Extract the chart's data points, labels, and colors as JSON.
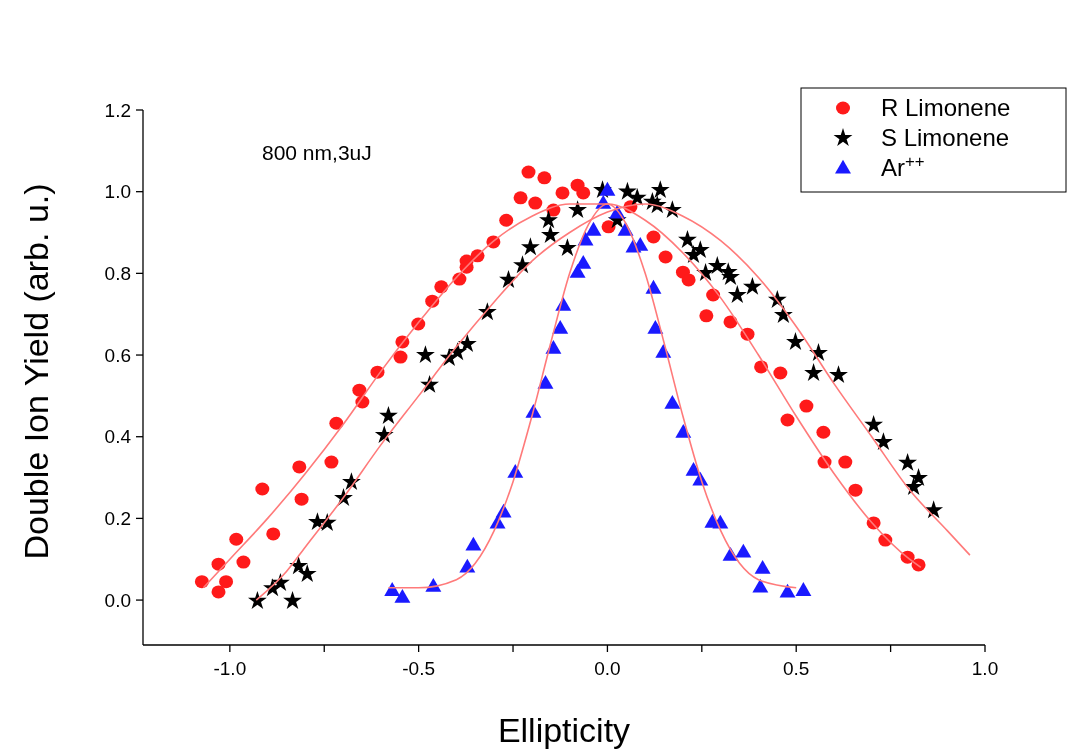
{
  "chart_data": {
    "type": "scatter",
    "xlabel": "Ellipticity",
    "ylabel": "Double Ion Yield (arb. u.)",
    "annotations": [
      "800 nm,3uJ"
    ],
    "xlim": [
      -1.23,
      1.0
    ],
    "ylim": [
      -0.11,
      1.2
    ],
    "xticks": [
      {
        "value": -1.0,
        "label": "-1.0"
      },
      {
        "value": -0.75,
        "label": null
      },
      -0.5,
      {
        "value": -0.25,
        "label": null
      },
      {
        "value": 0,
        "label": "0.0"
      },
      {
        "value": 0.25,
        "label": null
      },
      0.5,
      {
        "value": 0.75,
        "label": null
      },
      {
        "value": 1.0,
        "label": "1.0"
      }
    ],
    "yticks": [
      {
        "value": 0,
        "label": "0.0"
      },
      0.2,
      0.4,
      0.6,
      0.8,
      {
        "value": 1.0,
        "label": "1.0"
      },
      1.2
    ],
    "grid": false,
    "legend": "top right",
    "series": [
      {
        "name": "R Limonene",
        "color": "#ff1a1a",
        "marker": "circle",
        "x": [
          -1.074,
          -1.03,
          -1.01,
          -1.03,
          -0.964,
          -0.983,
          -0.885,
          -0.914,
          -0.81,
          -0.816,
          -0.731,
          -0.718,
          -0.649,
          -0.657,
          -0.609,
          -0.548,
          -0.543,
          -0.501,
          -0.464,
          -0.44,
          -0.392,
          -0.373,
          -0.373,
          -0.344,
          -0.209,
          -0.167,
          -0.23,
          -0.191,
          -0.268,
          -0.302,
          -0.143,
          -0.119,
          -0.079,
          -0.064,
          0.003,
          0.061,
          0.122,
          0.154,
          0.2,
          0.215,
          0.28,
          0.262,
          0.326,
          0.371,
          0.407,
          0.458,
          0.527,
          0.477,
          0.572,
          0.575,
          0.63,
          0.657,
          0.705,
          0.736,
          0.795,
          0.824
        ],
        "values": [
          0.045,
          0.088,
          0.045,
          0.02,
          0.093,
          0.149,
          0.162,
          0.272,
          0.247,
          0.326,
          0.338,
          0.433,
          0.485,
          0.514,
          0.558,
          0.595,
          0.632,
          0.676,
          0.732,
          0.767,
          0.786,
          0.815,
          0.83,
          0.843,
          1.048,
          1.034,
          0.985,
          0.972,
          0.93,
          0.877,
          0.955,
          0.997,
          1.016,
          0.997,
          0.914,
          0.963,
          0.889,
          0.84,
          0.803,
          0.784,
          0.747,
          0.696,
          0.681,
          0.651,
          0.571,
          0.556,
          0.475,
          0.441,
          0.411,
          0.338,
          0.338,
          0.269,
          0.189,
          0.147,
          0.105,
          0.086
        ]
      },
      {
        "name": "S Limonene",
        "color": "#000000",
        "marker": "star",
        "x": [
          -0.927,
          -0.834,
          -0.887,
          -0.866,
          -0.818,
          -0.795,
          -0.768,
          -0.742,
          -0.699,
          -0.678,
          -0.591,
          -0.58,
          -0.471,
          -0.482,
          -0.419,
          -0.397,
          -0.371,
          -0.318,
          -0.262,
          -0.225,
          -0.204,
          -0.151,
          -0.106,
          -0.156,
          -0.079,
          -0.013,
          0.053,
          0.079,
          0.132,
          0.14,
          0.026,
          0.119,
          0.172,
          0.212,
          0.246,
          0.228,
          0.291,
          0.32,
          0.326,
          0.26,
          0.344,
          0.384,
          0.45,
          0.466,
          0.498,
          0.559,
          0.546,
          0.612,
          0.705,
          0.731,
          0.795,
          0.824,
          0.811,
          0.864
        ],
        "values": [
          -0.002,
          -0.002,
          0.029,
          0.042,
          0.083,
          0.064,
          0.191,
          0.189,
          0.25,
          0.289,
          0.404,
          0.451,
          0.527,
          0.6,
          0.593,
          0.607,
          0.627,
          0.705,
          0.784,
          0.82,
          0.864,
          0.894,
          0.862,
          0.93,
          0.955,
          1.004,
          1.0,
          0.985,
          0.967,
          1.004,
          0.93,
          0.975,
          0.955,
          0.882,
          0.857,
          0.845,
          0.818,
          0.803,
          0.791,
          0.801,
          0.747,
          0.767,
          0.735,
          0.698,
          0.632,
          0.605,
          0.556,
          0.551,
          0.429,
          0.387,
          0.336,
          0.299,
          0.277,
          0.22
        ]
      },
      {
        "name": "Ar$^{++}$",
        "color": "#1a1aff",
        "marker": "triangle",
        "x": [
          -0.57,
          -0.543,
          -0.461,
          -0.371,
          -0.355,
          -0.291,
          -0.275,
          -0.244,
          -0.196,
          -0.164,
          -0.143,
          -0.125,
          -0.117,
          -0.079,
          -0.064,
          -0.058,
          -0.037,
          0.0,
          -0.011,
          0.026,
          0.048,
          0.069,
          0.087,
          0.122,
          0.127,
          0.148,
          0.172,
          0.201,
          0.228,
          0.246,
          0.278,
          0.299,
          0.326,
          0.36,
          0.411,
          0.405,
          0.477,
          0.519
        ],
        "values": [
          0.024,
          0.007,
          0.034,
          0.081,
          0.135,
          0.189,
          0.216,
          0.313,
          0.46,
          0.531,
          0.617,
          0.666,
          0.722,
          0.803,
          0.825,
          0.882,
          0.906,
          1.004,
          0.972,
          0.948,
          0.906,
          0.865,
          0.869,
          0.764,
          0.666,
          0.607,
          0.482,
          0.411,
          0.318,
          0.294,
          0.191,
          0.189,
          0.11,
          0.118,
          0.078,
          0.032,
          0.02,
          0.024
        ]
      },
      {
        "type": "line",
        "color": "#ff7a7a",
        "marker": "none",
        "x": [
          -1.07,
          -1.0,
          -0.9,
          -0.8,
          -0.7,
          -0.6,
          -0.5,
          -0.4,
          -0.3,
          -0.2,
          -0.1,
          0.0,
          0.1,
          0.2,
          0.3,
          0.4,
          0.5,
          0.6,
          0.7,
          0.8,
          0.83
        ],
        "values": [
          0.03,
          0.1,
          0.2,
          0.31,
          0.43,
          0.56,
          0.68,
          0.79,
          0.88,
          0.94,
          0.97,
          0.97,
          0.93,
          0.85,
          0.74,
          0.6,
          0.45,
          0.31,
          0.19,
          0.1,
          0.08
        ]
      },
      {
        "type": "line",
        "color": "#ff7a7a",
        "marker": "none",
        "x": [
          -0.93,
          -0.85,
          -0.8,
          -0.7,
          -0.6,
          -0.5,
          -0.4,
          -0.3,
          -0.2,
          -0.1,
          0.0,
          0.1,
          0.2,
          0.3,
          0.4,
          0.5,
          0.6,
          0.7,
          0.8,
          0.9,
          0.96
        ],
        "values": [
          0.0,
          0.07,
          0.13,
          0.25,
          0.38,
          0.5,
          0.62,
          0.73,
          0.83,
          0.9,
          0.95,
          0.97,
          0.94,
          0.88,
          0.79,
          0.67,
          0.53,
          0.4,
          0.27,
          0.17,
          0.11
        ]
      },
      {
        "type": "line",
        "color": "#ff7a7a",
        "marker": "none",
        "x": [
          -0.58,
          -0.5,
          -0.4,
          -0.35,
          -0.3,
          -0.25,
          -0.2,
          -0.15,
          -0.1,
          -0.05,
          0.0,
          0.05,
          0.1,
          0.15,
          0.2,
          0.25,
          0.3,
          0.35,
          0.4,
          0.5
        ],
        "values": [
          0.03,
          0.03,
          0.05,
          0.09,
          0.17,
          0.29,
          0.45,
          0.63,
          0.8,
          0.92,
          0.97,
          0.92,
          0.8,
          0.63,
          0.45,
          0.29,
          0.17,
          0.09,
          0.05,
          0.03
        ]
      }
    ]
  }
}
